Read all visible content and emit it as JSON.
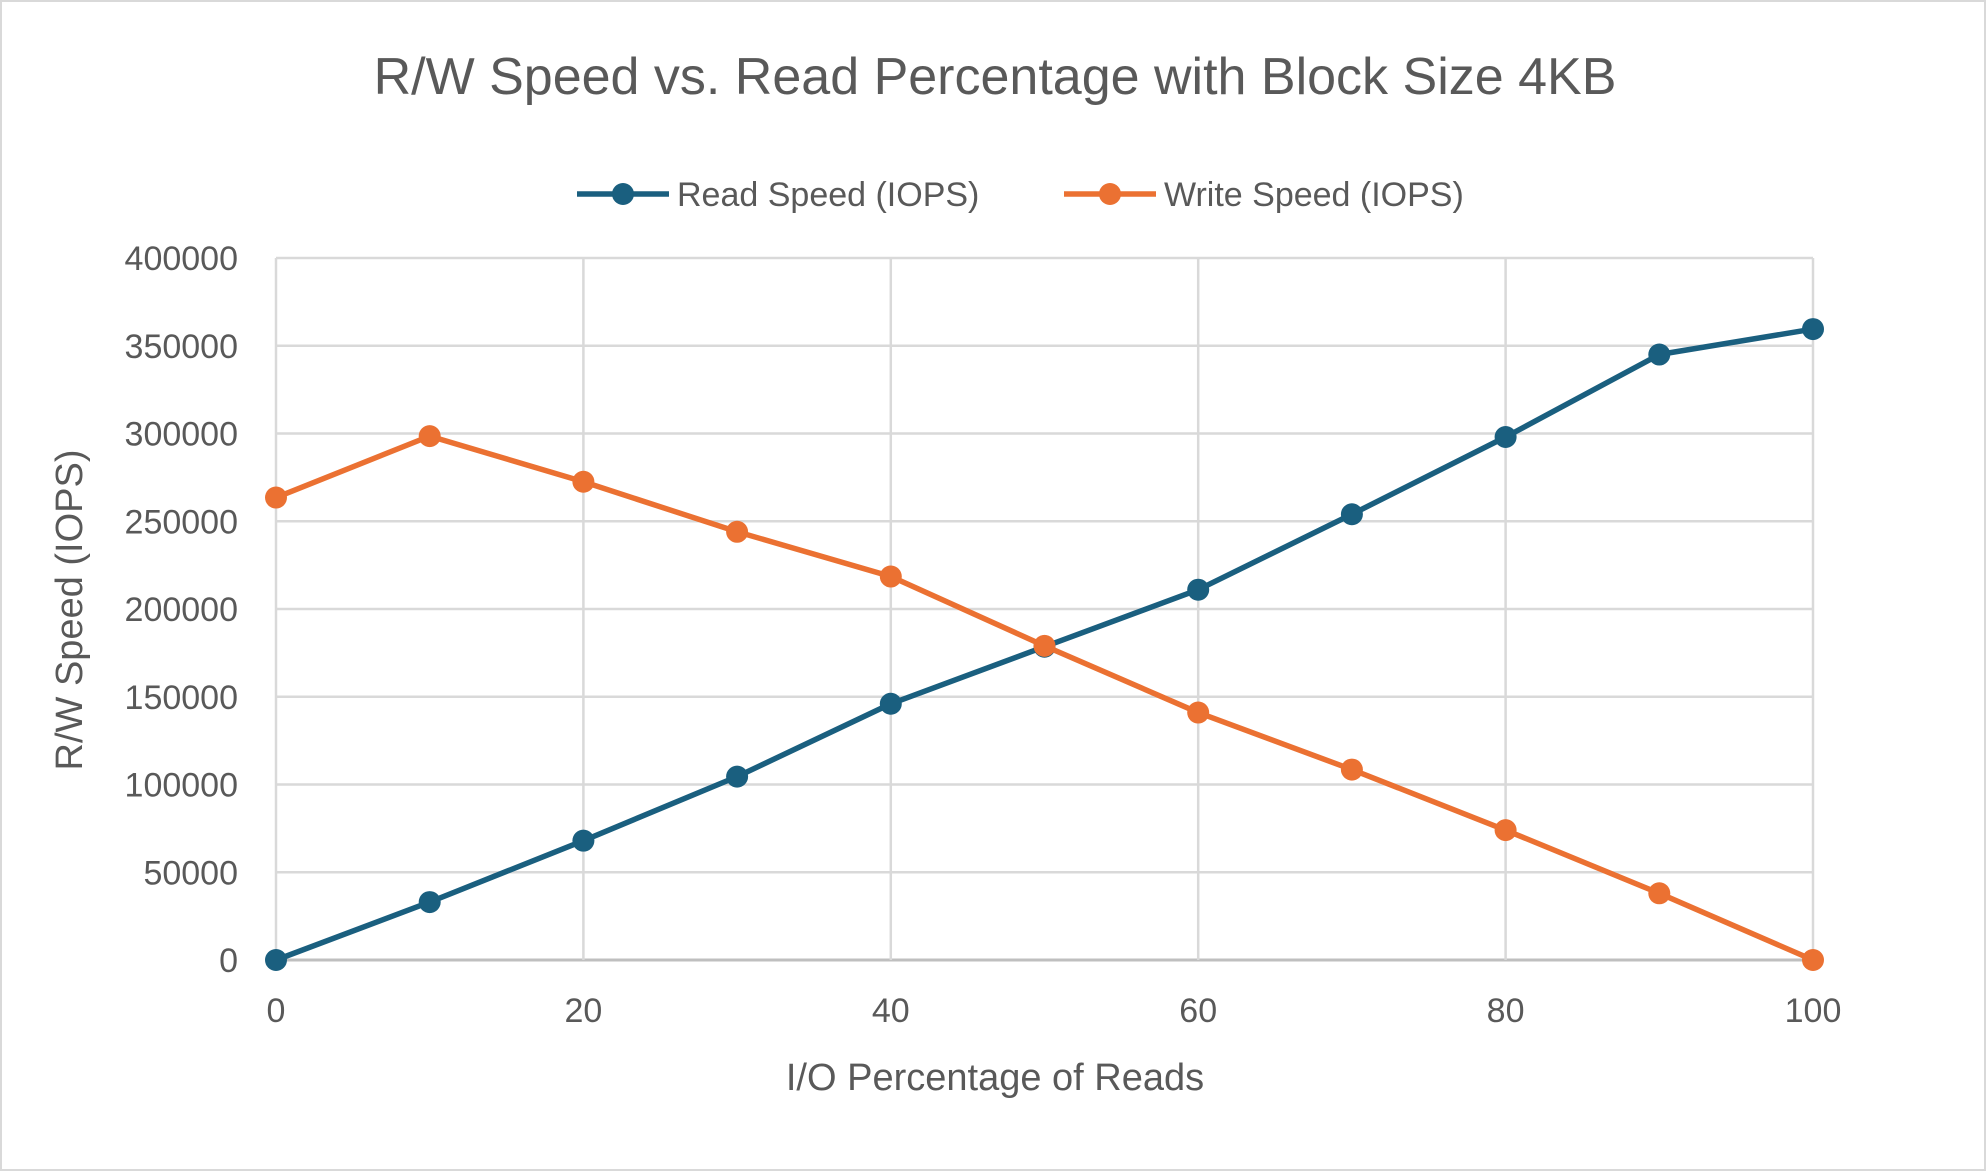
{
  "chart_data": {
    "type": "line",
    "title": "R/W Speed vs. Read Percentage with Block Size 4KB",
    "xlabel": "I/O Percentage of Reads",
    "ylabel": "R/W Speed (IOPS)",
    "xlim": [
      0,
      100
    ],
    "ylim": [
      0,
      400000
    ],
    "xticks": [
      0,
      20,
      40,
      60,
      80,
      100
    ],
    "yticks": [
      0,
      50000,
      100000,
      150000,
      200000,
      250000,
      300000,
      350000,
      400000
    ],
    "grid": true,
    "legend": "top",
    "x": [
      0,
      10,
      20,
      30,
      40,
      50,
      60,
      70,
      80,
      90,
      100
    ],
    "series": [
      {
        "name": "Read Speed (IOPS)",
        "color": "#1a5f7f",
        "values": [
          0,
          33000,
          68000,
          104500,
          146000,
          178500,
          211000,
          254000,
          298000,
          345000,
          359500
        ]
      },
      {
        "name": "Write Speed (IOPS)",
        "color": "#eb7132",
        "values": [
          263500,
          298500,
          272500,
          244000,
          218500,
          179000,
          141000,
          108500,
          74000,
          38000,
          0
        ]
      }
    ]
  }
}
